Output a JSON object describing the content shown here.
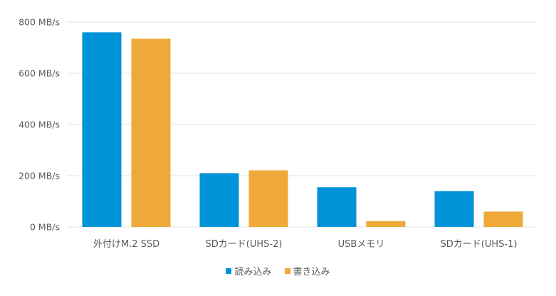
{
  "chart_data": {
    "type": "bar",
    "title": "",
    "xlabel": "",
    "ylabel": "",
    "categories": [
      "外付けM.2 SSD",
      "SDカード(UHS-2)",
      "USBメモリ",
      "SDカード(UHS-1)"
    ],
    "series": [
      {
        "name": "読み込み",
        "color": "#0093d7",
        "values": [
          760,
          210,
          155,
          140
        ]
      },
      {
        "name": "書き込み",
        "color": "#efa938",
        "values": [
          735,
          221,
          23,
          60
        ]
      }
    ],
    "y_ticks": [
      {
        "value": 0,
        "label": "0 MB/s"
      },
      {
        "value": 200,
        "label": "200 MB/s"
      },
      {
        "value": 400,
        "label": "400 MB/s"
      },
      {
        "value": 600,
        "label": "600 MB/s"
      },
      {
        "value": 800,
        "label": "800 MB/s"
      }
    ],
    "ylim": [
      0,
      800
    ],
    "grid": true,
    "legend_position": "bottom-center",
    "gridline_color": "#e3e3e3"
  }
}
